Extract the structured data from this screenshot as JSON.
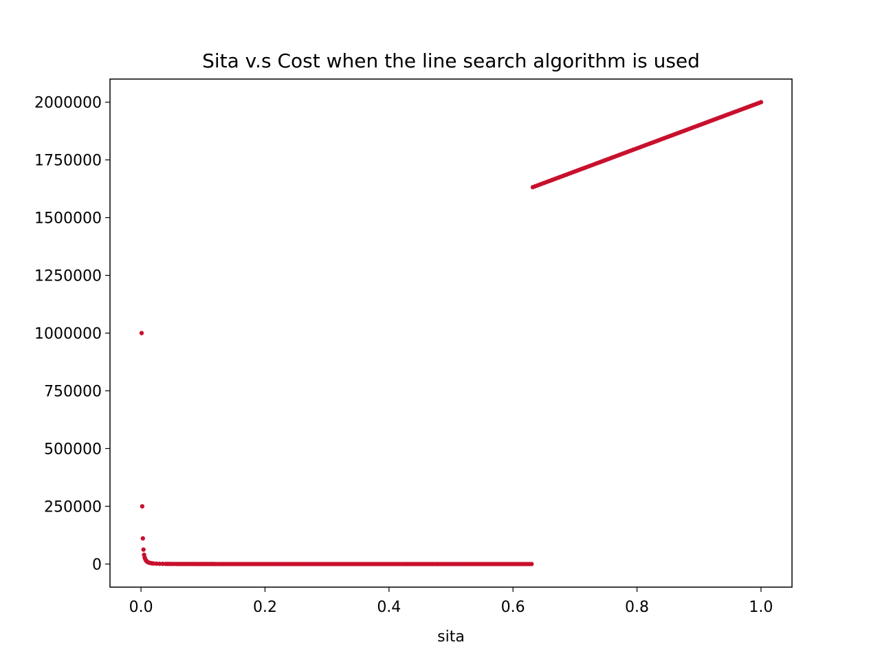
{
  "chart_data": {
    "type": "scatter",
    "title": "Sita v.s Cost when the line search algorithm is used",
    "xlabel": "sita",
    "ylabel": "",
    "xlim": [
      -0.05,
      1.05
    ],
    "ylim": [
      -100000,
      2100000
    ],
    "x_ticks": [
      {
        "value": 0.0,
        "label": "0.0"
      },
      {
        "value": 0.2,
        "label": "0.2"
      },
      {
        "value": 0.4,
        "label": "0.4"
      },
      {
        "value": 0.6,
        "label": "0.6"
      },
      {
        "value": 0.8,
        "label": "0.8"
      },
      {
        "value": 1.0,
        "label": "1.0"
      }
    ],
    "y_ticks": [
      {
        "value": 0,
        "label": "0"
      },
      {
        "value": 250000,
        "label": "250000"
      },
      {
        "value": 500000,
        "label": "500000"
      },
      {
        "value": 750000,
        "label": "750000"
      },
      {
        "value": 1000000,
        "label": "1000000"
      },
      {
        "value": 1250000,
        "label": "1250000"
      },
      {
        "value": 1500000,
        "label": "1500000"
      },
      {
        "value": 1750000,
        "label": "1750000"
      },
      {
        "value": 2000000,
        "label": "2000000"
      }
    ],
    "grid": false,
    "legend": "none",
    "marker_color": "#c8102e",
    "series": [
      {
        "description_free": true,
        "x": [
          0.001,
          0.002,
          0.003,
          0.004,
          0.005,
          0.006,
          0.007,
          0.008,
          0.009,
          0.01,
          0.012,
          0.014,
          0.016,
          0.018,
          0.02,
          0.025,
          0.03,
          0.035,
          0.04,
          0.05,
          0.06,
          0.07,
          0.08,
          0.09,
          0.1,
          0.12,
          0.14,
          0.16,
          0.18,
          0.2,
          0.22,
          0.24,
          0.26,
          0.28,
          0.3,
          0.32,
          0.34,
          0.36,
          0.38,
          0.4,
          0.42,
          0.44,
          0.46,
          0.48,
          0.5,
          0.52,
          0.54,
          0.56,
          0.58,
          0.6,
          0.62,
          0.63,
          0.632,
          0.65,
          0.7,
          0.75,
          0.8,
          0.85,
          0.9,
          0.95,
          1.0
        ],
        "y": [
          1000000,
          250000,
          111111,
          62500,
          40000,
          27778,
          20408,
          15625,
          12346,
          10000,
          6944,
          5102,
          3906,
          3086,
          2500,
          1600,
          1111,
          816,
          625,
          400,
          278,
          204,
          156,
          123,
          100,
          69,
          51,
          39,
          31,
          25,
          21,
          17,
          15,
          13,
          11,
          10,
          9,
          8,
          7,
          6,
          6,
          5,
          5,
          4,
          4,
          4,
          3,
          3,
          3,
          3,
          3,
          3,
          1632000,
          1650000,
          1700000,
          1750000,
          1800000,
          1850000,
          1900000,
          1950000,
          2000000
        ]
      }
    ]
  }
}
